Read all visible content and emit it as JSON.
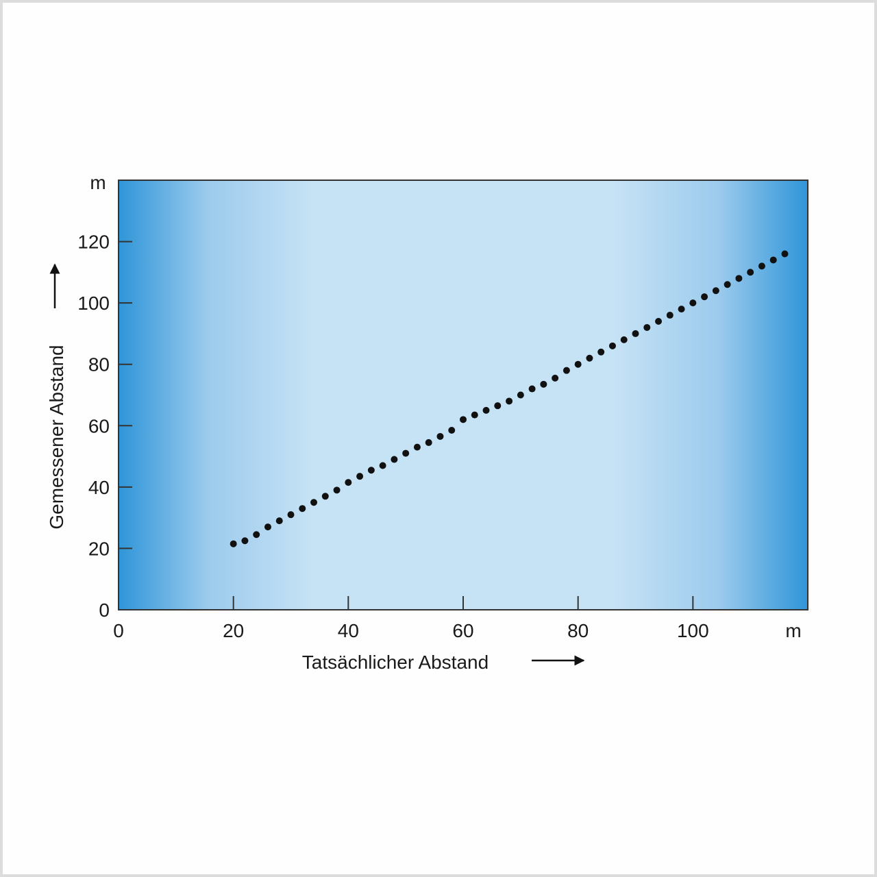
{
  "chart_data": {
    "type": "scatter",
    "title": "",
    "xlabel": "Tatsächlicher Abstand",
    "ylabel": "Gemessener Abstand",
    "x_unit": "m",
    "y_unit": "m",
    "xlim": [
      0,
      120
    ],
    "ylim": [
      0,
      140
    ],
    "x_ticks": [
      0,
      20,
      40,
      60,
      80,
      100
    ],
    "y_ticks": [
      0,
      20,
      40,
      60,
      80,
      100,
      120
    ],
    "x_tick_labels": [
      "0",
      "20",
      "40",
      "60",
      "80",
      "100"
    ],
    "y_tick_labels": [
      "0",
      "20",
      "40",
      "60",
      "80",
      "100",
      "120"
    ],
    "grid": false,
    "legend": "none",
    "colors": {
      "point": "#111111",
      "background_edge": "#2f95d8",
      "background_center": "#c8e3f5",
      "frame": "#333333"
    },
    "series": [
      {
        "points": [
          [
            20,
            21.5
          ],
          [
            22,
            22.5
          ],
          [
            24,
            24.5
          ],
          [
            26,
            27
          ],
          [
            28,
            29
          ],
          [
            30,
            31
          ],
          [
            32,
            33
          ],
          [
            34,
            35
          ],
          [
            36,
            37
          ],
          [
            38,
            39
          ],
          [
            40,
            41.5
          ],
          [
            42,
            43.5
          ],
          [
            44,
            45.5
          ],
          [
            46,
            47
          ],
          [
            48,
            49
          ],
          [
            50,
            51
          ],
          [
            52,
            53
          ],
          [
            54,
            54.5
          ],
          [
            56,
            56.5
          ],
          [
            58,
            58.5
          ],
          [
            60,
            62
          ],
          [
            62,
            63.5
          ],
          [
            64,
            65
          ],
          [
            66,
            66.5
          ],
          [
            68,
            68
          ],
          [
            70,
            70
          ],
          [
            72,
            72
          ],
          [
            74,
            73.5
          ],
          [
            76,
            75.5
          ],
          [
            78,
            78
          ],
          [
            80,
            80
          ],
          [
            82,
            82
          ],
          [
            84,
            84
          ],
          [
            86,
            86
          ],
          [
            88,
            88
          ],
          [
            90,
            90
          ],
          [
            92,
            92
          ],
          [
            94,
            94
          ],
          [
            96,
            96
          ],
          [
            98,
            98
          ],
          [
            100,
            100
          ],
          [
            102,
            102
          ],
          [
            104,
            104
          ],
          [
            106,
            106
          ],
          [
            108,
            108
          ],
          [
            110,
            110
          ],
          [
            112,
            112
          ],
          [
            114,
            114
          ],
          [
            116,
            116
          ]
        ]
      }
    ]
  }
}
